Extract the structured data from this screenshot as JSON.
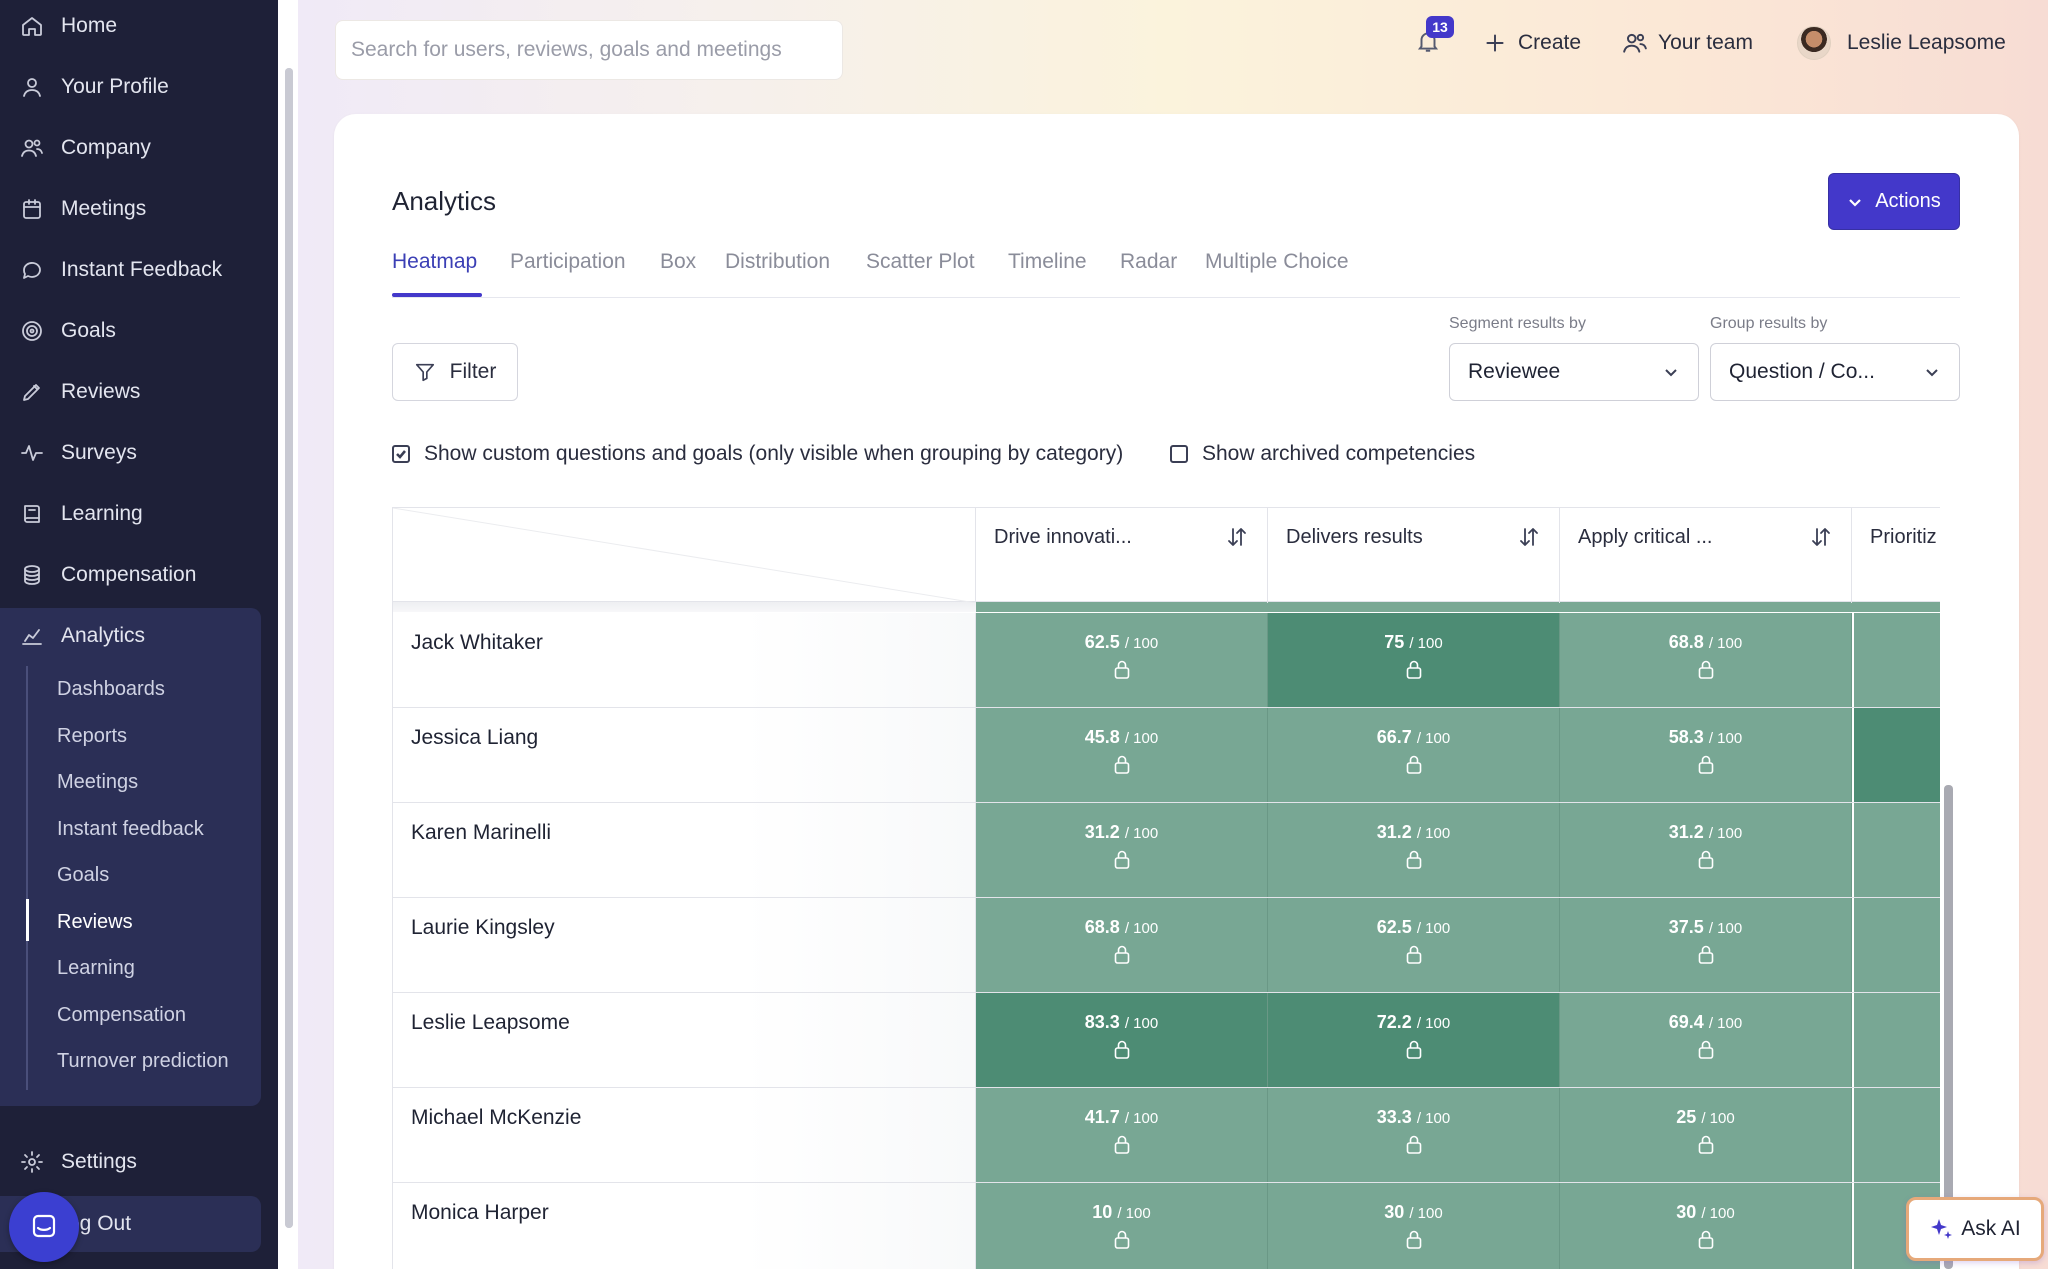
{
  "sidebar": {
    "items": [
      {
        "label": "Home",
        "icon": "home-icon"
      },
      {
        "label": "Your Profile",
        "icon": "user-icon"
      },
      {
        "label": "Company",
        "icon": "users-icon"
      },
      {
        "label": "Meetings",
        "icon": "calendar-icon"
      },
      {
        "label": "Instant Feedback",
        "icon": "chat-icon"
      },
      {
        "label": "Goals",
        "icon": "target-icon"
      },
      {
        "label": "Reviews",
        "icon": "pencil-icon"
      },
      {
        "label": "Surveys",
        "icon": "pulse-icon"
      },
      {
        "label": "Learning",
        "icon": "book-icon"
      },
      {
        "label": "Compensation",
        "icon": "coins-icon"
      },
      {
        "label": "Analytics",
        "icon": "chart-icon"
      }
    ],
    "analytics_sub": [
      "Dashboards",
      "Reports",
      "Meetings",
      "Instant feedback",
      "Goals",
      "Reviews",
      "Learning",
      "Compensation",
      "Turnover prediction"
    ],
    "active_sub": "Reviews",
    "settings": "Settings",
    "logout": "og Out"
  },
  "topbar": {
    "search_placeholder": "Search for users, reviews, goals and meetings",
    "notification_count": "13",
    "create": "Create",
    "team": "Your team",
    "user": "Leslie Leapsome"
  },
  "page": {
    "title": "Analytics",
    "actions": "Actions",
    "tabs": [
      "Heatmap",
      "Participation",
      "Box",
      "Distribution",
      "Scatter Plot",
      "Timeline",
      "Radar",
      "Multiple Choice"
    ],
    "active_tab": "Heatmap",
    "filter": "Filter",
    "segment_label": "Segment results by",
    "segment_value": "Reviewee",
    "group_label": "Group results by",
    "group_value": "Question / Co...",
    "checkbox_custom": "Show custom questions and goals (only visible when grouping by category)",
    "checkbox_custom_checked": true,
    "checkbox_archived": "Show archived competencies",
    "checkbox_archived_checked": false
  },
  "table": {
    "columns": [
      "Drive innovati...",
      "Delivers results",
      "Apply critical ...",
      "Prioritiz"
    ],
    "max_suffix": "/ 100",
    "rows": [
      {
        "name": "Jack Whitaker",
        "scores": [
          "62.5",
          "75",
          "68.8"
        ],
        "dark": [
          false,
          true,
          false
        ],
        "partial_dark": false
      },
      {
        "name": "Jessica Liang",
        "scores": [
          "45.8",
          "66.7",
          "58.3"
        ],
        "dark": [
          false,
          false,
          false
        ],
        "partial_dark": true
      },
      {
        "name": "Karen Marinelli",
        "scores": [
          "31.2",
          "31.2",
          "31.2"
        ],
        "dark": [
          false,
          false,
          false
        ],
        "partial_dark": false
      },
      {
        "name": "Laurie Kingsley",
        "scores": [
          "68.8",
          "62.5",
          "37.5"
        ],
        "dark": [
          false,
          false,
          false
        ],
        "partial_dark": false
      },
      {
        "name": "Leslie Leapsome",
        "scores": [
          "83.3",
          "72.2",
          "69.4"
        ],
        "dark": [
          true,
          true,
          false
        ],
        "partial_dark": false
      },
      {
        "name": "Michael McKenzie",
        "scores": [
          "41.7",
          "33.3",
          "25"
        ],
        "dark": [
          false,
          false,
          false
        ],
        "partial_dark": false
      },
      {
        "name": "Monica Harper",
        "scores": [
          "10",
          "30",
          "30"
        ],
        "dark": [
          false,
          false,
          false
        ],
        "partial_dark": false
      }
    ]
  },
  "ask_ai": "Ask AI",
  "colors": {
    "accent": "#4338ca",
    "heat_light": "#78a794",
    "heat_dark": "#4d8c74",
    "sidebar": "#1e2038"
  }
}
